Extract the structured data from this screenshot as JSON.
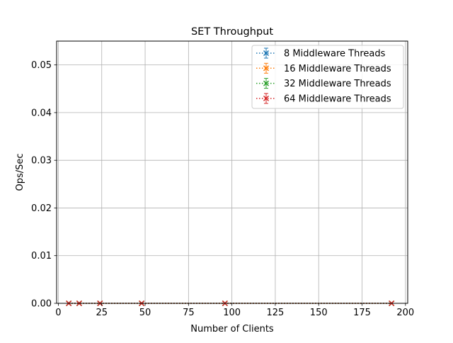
{
  "chart_data": {
    "type": "line",
    "title": "SET Throughput",
    "xlabel": "Number of Clients",
    "ylabel": "Ops/Sec",
    "xlim": [
      -1,
      201.3
    ],
    "ylim": [
      0,
      0.055
    ],
    "xticks": [
      0,
      25,
      50,
      75,
      100,
      125,
      150,
      175,
      200
    ],
    "xtick_labels": [
      "0",
      "25",
      "50",
      "75",
      "100",
      "125",
      "150",
      "175",
      "200"
    ],
    "yticks": [
      0.0,
      0.01,
      0.02,
      0.03,
      0.04,
      0.05
    ],
    "ytick_labels": [
      "0.00",
      "0.01",
      "0.02",
      "0.03",
      "0.04",
      "0.05"
    ],
    "grid": true,
    "legend_position": "top-right",
    "x": [
      6,
      12,
      24,
      48,
      96,
      192
    ],
    "series": [
      {
        "name": "8 Middleware Threads",
        "color": "#1f77b4",
        "values": [
          0,
          0,
          0,
          0,
          0,
          0
        ]
      },
      {
        "name": "16 Middleware Threads",
        "color": "#ff7f0e",
        "values": [
          0,
          0,
          0,
          0,
          0,
          0
        ]
      },
      {
        "name": "32 Middleware Threads",
        "color": "#2ca02c",
        "values": [
          0,
          0,
          0,
          0,
          0,
          0
        ]
      },
      {
        "name": "64 Middleware Threads",
        "color": "#d62728",
        "values": [
          0,
          0,
          0,
          0,
          0,
          0
        ]
      }
    ]
  }
}
